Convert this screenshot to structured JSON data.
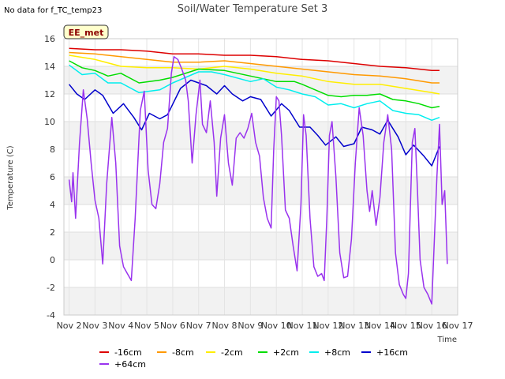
{
  "notice": "No data for f_TC_temp23",
  "badge": "EE_met",
  "chart_data": {
    "type": "line",
    "title": "Soil/Water Temperature Set 3",
    "xlabel": "Time",
    "ylabel": "Temperature (C)",
    "xlim": [
      1.8,
      17
    ],
    "ylim": [
      -4,
      16
    ],
    "x_ticks": [
      2,
      3,
      4,
      5,
      6,
      7,
      8,
      9,
      10,
      11,
      12,
      13,
      14,
      15,
      16,
      17
    ],
    "x_tick_labels": [
      "Nov 2",
      "Nov 3",
      "Nov 4",
      "Nov 5",
      "Nov 6",
      "Nov 7",
      "Nov 8",
      "Nov 9",
      "Nov 10",
      "Nov 11",
      "Nov 12",
      "Nov 13",
      "Nov 14",
      "Nov 15",
      "Nov 16",
      "Nov 17"
    ],
    "y_ticks": [
      -4,
      -2,
      0,
      2,
      4,
      6,
      8,
      10,
      12,
      14,
      16
    ],
    "grid": true,
    "legend_position": "bottom",
    "series": [
      {
        "name": "-16cm",
        "color": "#dd0000",
        "points": [
          [
            2.0,
            15.3
          ],
          [
            3.0,
            15.2
          ],
          [
            4.0,
            15.2
          ],
          [
            5.0,
            15.1
          ],
          [
            6.0,
            14.9
          ],
          [
            7.0,
            14.9
          ],
          [
            8.0,
            14.8
          ],
          [
            9.0,
            14.8
          ],
          [
            10.0,
            14.7
          ],
          [
            11.0,
            14.5
          ],
          [
            12.0,
            14.4
          ],
          [
            13.0,
            14.2
          ],
          [
            14.0,
            14.0
          ],
          [
            15.0,
            13.9
          ],
          [
            16.0,
            13.7
          ],
          [
            16.3,
            13.7
          ]
        ]
      },
      {
        "name": "-8cm",
        "color": "#ff9900",
        "points": [
          [
            2.0,
            15.0
          ],
          [
            3.0,
            14.9
          ],
          [
            4.0,
            14.7
          ],
          [
            5.0,
            14.5
          ],
          [
            6.0,
            14.3
          ],
          [
            7.0,
            14.3
          ],
          [
            8.0,
            14.4
          ],
          [
            9.0,
            14.2
          ],
          [
            10.0,
            14.0
          ],
          [
            11.0,
            13.8
          ],
          [
            12.0,
            13.6
          ],
          [
            13.0,
            13.4
          ],
          [
            14.0,
            13.3
          ],
          [
            15.0,
            13.1
          ],
          [
            16.0,
            12.8
          ],
          [
            16.3,
            12.8
          ]
        ]
      },
      {
        "name": "-2cm",
        "color": "#ffee00",
        "points": [
          [
            2.0,
            14.8
          ],
          [
            3.0,
            14.5
          ],
          [
            4.0,
            14.0
          ],
          [
            5.0,
            13.9
          ],
          [
            6.0,
            13.9
          ],
          [
            7.0,
            13.8
          ],
          [
            8.0,
            14.0
          ],
          [
            9.0,
            13.8
          ],
          [
            10.0,
            13.5
          ],
          [
            11.0,
            13.3
          ],
          [
            12.0,
            12.9
          ],
          [
            13.0,
            12.7
          ],
          [
            14.0,
            12.7
          ],
          [
            15.0,
            12.4
          ],
          [
            16.0,
            12.1
          ],
          [
            16.3,
            12.0
          ]
        ]
      },
      {
        "name": "+2cm",
        "color": "#00dd00",
        "points": [
          [
            2.0,
            14.4
          ],
          [
            2.5,
            13.9
          ],
          [
            3.0,
            13.7
          ],
          [
            3.5,
            13.3
          ],
          [
            4.0,
            13.5
          ],
          [
            4.7,
            12.8
          ],
          [
            5.5,
            13.0
          ],
          [
            6.0,
            13.2
          ],
          [
            7.0,
            13.8
          ],
          [
            8.0,
            13.7
          ],
          [
            9.0,
            13.3
          ],
          [
            10.0,
            12.9
          ],
          [
            10.7,
            12.9
          ],
          [
            11.0,
            12.7
          ],
          [
            12.0,
            11.9
          ],
          [
            12.5,
            11.8
          ],
          [
            13.0,
            11.9
          ],
          [
            13.5,
            11.9
          ],
          [
            14.0,
            12.0
          ],
          [
            14.5,
            11.6
          ],
          [
            15.0,
            11.5
          ],
          [
            15.5,
            11.3
          ],
          [
            16.0,
            11.0
          ],
          [
            16.3,
            11.1
          ]
        ]
      },
      {
        "name": "+8cm",
        "color": "#00eeee",
        "points": [
          [
            2.0,
            14.1
          ],
          [
            2.5,
            13.4
          ],
          [
            3.0,
            13.5
          ],
          [
            3.5,
            12.8
          ],
          [
            4.0,
            12.8
          ],
          [
            4.7,
            12.1
          ],
          [
            5.5,
            12.3
          ],
          [
            6.0,
            12.8
          ],
          [
            6.5,
            13.2
          ],
          [
            7.0,
            13.6
          ],
          [
            7.5,
            13.6
          ],
          [
            8.0,
            13.4
          ],
          [
            9.0,
            12.9
          ],
          [
            9.5,
            13.1
          ],
          [
            10.0,
            12.5
          ],
          [
            10.5,
            12.3
          ],
          [
            11.0,
            12.0
          ],
          [
            11.5,
            11.8
          ],
          [
            12.0,
            11.2
          ],
          [
            12.5,
            11.3
          ],
          [
            13.0,
            11.0
          ],
          [
            13.5,
            11.3
          ],
          [
            14.0,
            11.5
          ],
          [
            14.5,
            10.8
          ],
          [
            15.0,
            10.6
          ],
          [
            15.5,
            10.5
          ],
          [
            16.0,
            10.1
          ],
          [
            16.3,
            10.3
          ]
        ]
      },
      {
        "name": "+16cm",
        "color": "#0000cc",
        "points": [
          [
            2.0,
            12.7
          ],
          [
            2.3,
            12.0
          ],
          [
            2.6,
            11.6
          ],
          [
            3.0,
            12.3
          ],
          [
            3.3,
            11.9
          ],
          [
            3.7,
            10.6
          ],
          [
            4.1,
            11.3
          ],
          [
            4.5,
            10.3
          ],
          [
            4.8,
            9.4
          ],
          [
            5.1,
            10.6
          ],
          [
            5.5,
            10.2
          ],
          [
            5.8,
            10.5
          ],
          [
            6.3,
            12.4
          ],
          [
            6.7,
            13.0
          ],
          [
            7.0,
            12.8
          ],
          [
            7.3,
            12.6
          ],
          [
            7.7,
            12.0
          ],
          [
            8.0,
            12.6
          ],
          [
            8.3,
            12.0
          ],
          [
            8.7,
            11.5
          ],
          [
            9.0,
            11.8
          ],
          [
            9.4,
            11.6
          ],
          [
            9.8,
            10.4
          ],
          [
            10.2,
            11.3
          ],
          [
            10.5,
            10.8
          ],
          [
            10.9,
            9.6
          ],
          [
            11.3,
            9.6
          ],
          [
            11.6,
            9.0
          ],
          [
            11.9,
            8.3
          ],
          [
            12.3,
            8.9
          ],
          [
            12.6,
            8.2
          ],
          [
            13.0,
            8.4
          ],
          [
            13.3,
            9.6
          ],
          [
            13.7,
            9.4
          ],
          [
            14.0,
            9.1
          ],
          [
            14.3,
            10.1
          ],
          [
            14.7,
            8.9
          ],
          [
            15.0,
            7.6
          ],
          [
            15.3,
            8.3
          ],
          [
            15.7,
            7.5
          ],
          [
            16.0,
            6.8
          ],
          [
            16.3,
            8.2
          ]
        ]
      },
      {
        "name": "+64cm",
        "color": "#9933ee",
        "points": [
          [
            2.0,
            5.8
          ],
          [
            2.1,
            4.2
          ],
          [
            2.15,
            6.3
          ],
          [
            2.25,
            3.0
          ],
          [
            2.4,
            8.4
          ],
          [
            2.55,
            12.3
          ],
          [
            2.7,
            10.2
          ],
          [
            2.85,
            7.0
          ],
          [
            3.0,
            4.3
          ],
          [
            3.15,
            3.0
          ],
          [
            3.3,
            -0.3
          ],
          [
            3.45,
            5.5
          ],
          [
            3.65,
            10.3
          ],
          [
            3.8,
            7.0
          ],
          [
            3.95,
            1.0
          ],
          [
            4.1,
            -0.5
          ],
          [
            4.25,
            -1.0
          ],
          [
            4.4,
            -1.5
          ],
          [
            4.55,
            3.0
          ],
          [
            4.75,
            10.8
          ],
          [
            4.9,
            12.2
          ],
          [
            5.05,
            6.5
          ],
          [
            5.2,
            4.0
          ],
          [
            5.35,
            3.7
          ],
          [
            5.5,
            5.5
          ],
          [
            5.65,
            8.5
          ],
          [
            5.8,
            9.5
          ],
          [
            5.95,
            13.5
          ],
          [
            6.05,
            14.7
          ],
          [
            6.2,
            14.5
          ],
          [
            6.35,
            13.8
          ],
          [
            6.5,
            13.0
          ],
          [
            6.6,
            11.5
          ],
          [
            6.75,
            7.0
          ],
          [
            6.9,
            10.5
          ],
          [
            7.05,
            13.0
          ],
          [
            7.15,
            9.8
          ],
          [
            7.3,
            9.2
          ],
          [
            7.45,
            11.5
          ],
          [
            7.6,
            8.5
          ],
          [
            7.7,
            4.6
          ],
          [
            7.85,
            8.8
          ],
          [
            8.0,
            10.5
          ],
          [
            8.15,
            7.0
          ],
          [
            8.3,
            5.4
          ],
          [
            8.45,
            8.8
          ],
          [
            8.6,
            9.2
          ],
          [
            8.75,
            8.8
          ],
          [
            8.9,
            9.5
          ],
          [
            9.05,
            10.6
          ],
          [
            9.2,
            8.5
          ],
          [
            9.35,
            7.5
          ],
          [
            9.5,
            4.5
          ],
          [
            9.65,
            3.0
          ],
          [
            9.8,
            2.3
          ],
          [
            9.9,
            8.0
          ],
          [
            10.0,
            11.8
          ],
          [
            10.1,
            11.5
          ],
          [
            10.2,
            9.0
          ],
          [
            10.35,
            3.6
          ],
          [
            10.5,
            3.0
          ],
          [
            10.65,
            1.0
          ],
          [
            10.8,
            -0.8
          ],
          [
            10.95,
            4.0
          ],
          [
            11.05,
            10.5
          ],
          [
            11.15,
            9.0
          ],
          [
            11.3,
            3.0
          ],
          [
            11.45,
            -0.5
          ],
          [
            11.6,
            -1.2
          ],
          [
            11.75,
            -1.0
          ],
          [
            11.85,
            -1.5
          ],
          [
            11.95,
            3.0
          ],
          [
            12.05,
            9.0
          ],
          [
            12.15,
            10.0
          ],
          [
            12.3,
            6.0
          ],
          [
            12.45,
            0.5
          ],
          [
            12.6,
            -1.3
          ],
          [
            12.75,
            -1.2
          ],
          [
            12.9,
            1.5
          ],
          [
            13.05,
            7.0
          ],
          [
            13.2,
            11.0
          ],
          [
            13.35,
            9.0
          ],
          [
            13.5,
            5.0
          ],
          [
            13.6,
            3.5
          ],
          [
            13.7,
            5.0
          ],
          [
            13.85,
            2.5
          ],
          [
            14.0,
            4.5
          ],
          [
            14.15,
            8.5
          ],
          [
            14.3,
            10.5
          ],
          [
            14.45,
            8.0
          ],
          [
            14.6,
            0.5
          ],
          [
            14.75,
            -1.8
          ],
          [
            14.9,
            -2.5
          ],
          [
            15.0,
            -2.8
          ],
          [
            15.1,
            -1.0
          ],
          [
            15.25,
            8.5
          ],
          [
            15.35,
            9.5
          ],
          [
            15.45,
            5.0
          ],
          [
            15.55,
            0.0
          ],
          [
            15.7,
            -2.0
          ],
          [
            15.85,
            -2.5
          ],
          [
            16.0,
            -3.2
          ],
          [
            16.1,
            1.5
          ],
          [
            16.2,
            6.0
          ],
          [
            16.3,
            9.8
          ],
          [
            16.4,
            4.0
          ],
          [
            16.5,
            5.0
          ],
          [
            16.6,
            -0.3
          ]
        ]
      }
    ]
  }
}
